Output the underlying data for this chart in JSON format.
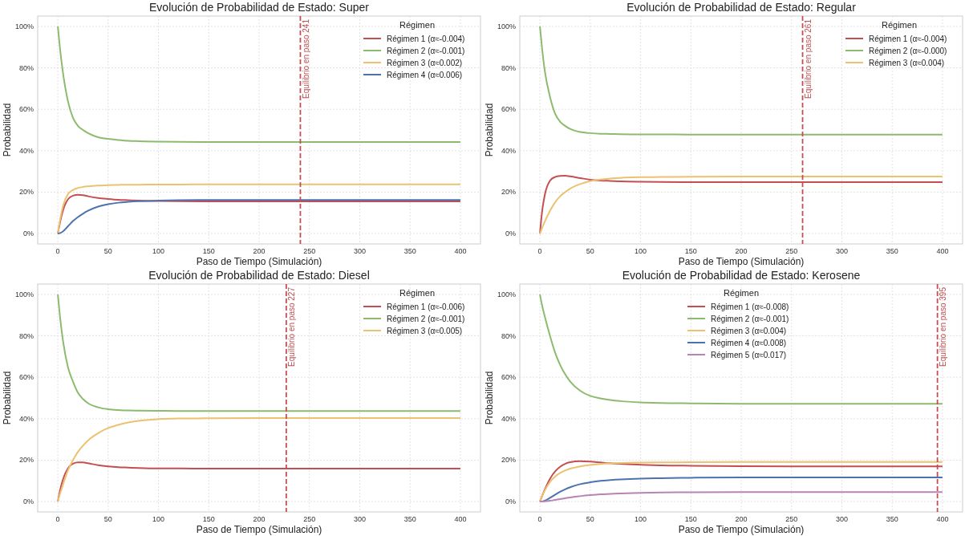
{
  "chart_data": [
    {
      "type": "line",
      "title": "Evolución de Probabilidad de Estado: Super",
      "xlabel": "Paso de Tiempo (Simulación)",
      "ylabel": "Probabilidad",
      "legend_title": "Régimen",
      "legend": "top right",
      "grid": true,
      "x": [
        0,
        2,
        5,
        10,
        15,
        20,
        25,
        30,
        40,
        50,
        60,
        70,
        80,
        100,
        120,
        150,
        200,
        250,
        300,
        350,
        400
      ],
      "series": [
        {
          "name": "Régimen 1 (α≈-0.004)",
          "color": "#c44e52",
          "values": [
            0,
            5,
            11,
            16.5,
            18.3,
            18.7,
            18.5,
            18,
            17.2,
            16.7,
            16.3,
            16.1,
            15.9,
            15.7,
            15.6,
            15.5,
            15.5,
            15.5,
            15.5,
            15.5,
            15.5
          ]
        },
        {
          "name": "Régimen 2 (α≈-0.001)",
          "color": "#8cbb6e",
          "values": [
            100,
            90,
            78,
            64,
            56,
            52,
            50,
            48.5,
            46.5,
            45.7,
            45.2,
            44.8,
            44.6,
            44.4,
            44.3,
            44.2,
            44.2,
            44.2,
            44.2,
            44.2,
            44.2
          ]
        },
        {
          "name": "Régimen 3 (α≈0.002)",
          "color": "#ecc272",
          "values": [
            0,
            6,
            13,
            19,
            21,
            22,
            22.5,
            22.8,
            23.2,
            23.4,
            23.5,
            23.6,
            23.6,
            23.7,
            23.7,
            23.8,
            23.8,
            23.8,
            23.8,
            23.8,
            23.8
          ]
        },
        {
          "name": "Régimen 4 (α≈0.006)",
          "color": "#4c72b0",
          "values": [
            0,
            0.2,
            1,
            3.5,
            6,
            8,
            9.6,
            11,
            13,
            14.2,
            14.9,
            15.3,
            15.6,
            15.9,
            16.1,
            16.2,
            16.2,
            16.2,
            16.2,
            16.2,
            16.2
          ]
        }
      ],
      "xlim": [
        -20,
        420
      ],
      "ylim": [
        -5,
        105
      ],
      "xticks": [
        0,
        50,
        100,
        150,
        200,
        250,
        300,
        350,
        400
      ],
      "yticks": [
        {
          "value": 0,
          "label": "0%"
        },
        {
          "value": 20,
          "label": "20%"
        },
        {
          "value": 40,
          "label": "40%"
        },
        {
          "value": 60,
          "label": "60%"
        },
        {
          "value": 80,
          "label": "80%"
        },
        {
          "value": 100,
          "label": "100%"
        }
      ],
      "ref_lines": [
        {
          "axis": "x",
          "value": 241,
          "label": "Equilibrio en paso 241",
          "color": "#c44e52",
          "line_style": "dashed"
        }
      ]
    },
    {
      "type": "line",
      "title": "Evolución de Probabilidad de Estado: Regular",
      "xlabel": "Paso de Tiempo (Simulación)",
      "ylabel": "Probabilidad",
      "legend_title": "Régimen",
      "legend": "top right",
      "grid": true,
      "x": [
        0,
        2,
        5,
        10,
        15,
        20,
        25,
        30,
        40,
        50,
        60,
        70,
        80,
        100,
        120,
        150,
        200,
        250,
        300,
        350,
        400
      ],
      "series": [
        {
          "name": "Régimen 1 (α≈-0.004)",
          "color": "#c44e52",
          "values": [
            0,
            10,
            19,
            25.5,
            27.3,
            27.8,
            27.9,
            27.6,
            26.8,
            26,
            25.6,
            25.4,
            25.2,
            25,
            24.9,
            24.8,
            24.8,
            24.8,
            24.8,
            24.8,
            24.8
          ]
        },
        {
          "name": "Régimen 2 (α≈-0.000)",
          "color": "#8cbb6e",
          "values": [
            100,
            90,
            78,
            66,
            58,
            54,
            52,
            50.5,
            49,
            48.5,
            48.2,
            48.1,
            48,
            47.9,
            47.9,
            47.8,
            47.8,
            47.8,
            47.8,
            47.8,
            47.8
          ]
        },
        {
          "name": "Régimen 3 (α≈0.004)",
          "color": "#ecc272",
          "values": [
            0,
            2.5,
            6,
            11,
            15,
            18,
            20,
            21.7,
            23.9,
            25.3,
            26.1,
            26.6,
            26.9,
            27.2,
            27.3,
            27.4,
            27.5,
            27.5,
            27.5,
            27.5,
            27.5
          ]
        }
      ],
      "xlim": [
        -20,
        420
      ],
      "ylim": [
        -5,
        105
      ],
      "xticks": [
        0,
        50,
        100,
        150,
        200,
        250,
        300,
        350,
        400
      ],
      "yticks": [
        {
          "value": 0,
          "label": "0%"
        },
        {
          "value": 20,
          "label": "20%"
        },
        {
          "value": 40,
          "label": "40%"
        },
        {
          "value": 60,
          "label": "60%"
        },
        {
          "value": 80,
          "label": "80%"
        },
        {
          "value": 100,
          "label": "100%"
        }
      ],
      "ref_lines": [
        {
          "axis": "x",
          "value": 261,
          "label": "Equilibrio en paso 261",
          "color": "#c44e52",
          "line_style": "dashed"
        }
      ]
    },
    {
      "type": "line",
      "title": "Evolución de Probabilidad de Estado: Diesel",
      "xlabel": "Paso de Tiempo (Simulación)",
      "ylabel": "Probabilidad",
      "legend_title": "Régimen",
      "legend": "top right",
      "grid": true,
      "x": [
        0,
        2,
        5,
        10,
        15,
        20,
        25,
        30,
        40,
        50,
        60,
        70,
        80,
        100,
        120,
        150,
        200,
        250,
        300,
        350,
        400
      ],
      "series": [
        {
          "name": "Régimen 1 (α≈-0.006)",
          "color": "#c44e52",
          "values": [
            0,
            5,
            10.5,
            16,
            18.3,
            18.9,
            18.9,
            18.5,
            17.6,
            17,
            16.6,
            16.4,
            16.2,
            16,
            16,
            15.9,
            15.9,
            15.9,
            15.9,
            15.9,
            15.9
          ]
        },
        {
          "name": "Régimen 2 (α≈-0.001)",
          "color": "#8cbb6e",
          "values": [
            100,
            90,
            78,
            65,
            58,
            52.5,
            49.5,
            47.5,
            45.5,
            44.6,
            44.2,
            44,
            43.9,
            43.8,
            43.7,
            43.7,
            43.7,
            43.7,
            43.7,
            43.7,
            43.7
          ]
        },
        {
          "name": "Régimen 3 (α≈0.005)",
          "color": "#ecc272",
          "values": [
            0,
            3.5,
            8,
            15,
            20,
            24,
            27,
            29.5,
            33,
            35.5,
            37,
            38.2,
            39,
            39.8,
            40.1,
            40.2,
            40.3,
            40.3,
            40.3,
            40.3,
            40.3
          ]
        }
      ],
      "xlim": [
        -20,
        420
      ],
      "ylim": [
        -5,
        105
      ],
      "xticks": [
        0,
        50,
        100,
        150,
        200,
        250,
        300,
        350,
        400
      ],
      "yticks": [
        {
          "value": 0,
          "label": "0%"
        },
        {
          "value": 20,
          "label": "20%"
        },
        {
          "value": 40,
          "label": "40%"
        },
        {
          "value": 60,
          "label": "60%"
        },
        {
          "value": 80,
          "label": "80%"
        },
        {
          "value": 100,
          "label": "100%"
        }
      ],
      "ref_lines": [
        {
          "axis": "x",
          "value": 227,
          "label": "Equilibrio en paso 227",
          "color": "#c44e52",
          "line_style": "dashed"
        }
      ]
    },
    {
      "type": "line",
      "title": "Evolución de Probabilidad de Estado: Kerosene",
      "xlabel": "Paso de Tiempo (Simulación)",
      "ylabel": "Probabilidad",
      "legend_title": "Régimen",
      "legend": "top",
      "grid": true,
      "x": [
        0,
        2,
        5,
        10,
        15,
        20,
        25,
        30,
        40,
        50,
        60,
        70,
        80,
        100,
        120,
        150,
        200,
        250,
        300,
        350,
        400
      ],
      "series": [
        {
          "name": "Régimen 1 (α≈-0.008)",
          "color": "#c44e52",
          "values": [
            0,
            2.5,
            6,
            11,
            14.5,
            16.8,
            18.2,
            19,
            19.5,
            19.3,
            18.9,
            18.5,
            18.2,
            17.8,
            17.5,
            17.3,
            17.1,
            17,
            17,
            17,
            17
          ]
        },
        {
          "name": "Régimen 2 (α≈-0.001)",
          "color": "#8cbb6e",
          "values": [
            100,
            95,
            89,
            80,
            72,
            66,
            61.5,
            58,
            53.5,
            51,
            49.8,
            49,
            48.5,
            47.9,
            47.6,
            47.4,
            47.2,
            47.2,
            47.2,
            47.2,
            47.2
          ]
        },
        {
          "name": "Régimen 3 (α≈0.004)",
          "color": "#ecc272",
          "values": [
            0,
            2.5,
            5.5,
            9.5,
            12,
            13.8,
            15,
            15.9,
            17,
            17.7,
            18.1,
            18.4,
            18.6,
            18.8,
            18.9,
            19,
            19.1,
            19.1,
            19.1,
            19.1,
            19.1
          ]
        },
        {
          "name": "Régimen 4 (α≈0.008)",
          "color": "#4c72b0",
          "values": [
            0,
            0,
            0.5,
            1.8,
            3.3,
            4.7,
            5.9,
            6.9,
            8.4,
            9.3,
            10,
            10.4,
            10.7,
            11.1,
            11.3,
            11.5,
            11.7,
            11.7,
            11.7,
            11.7,
            11.7
          ]
        },
        {
          "name": "Régimen 5 (α≈0.017)",
          "color": "#b784b5",
          "values": [
            0,
            0,
            0.1,
            0.4,
            0.8,
            1.2,
            1.6,
            2,
            2.6,
            3.1,
            3.5,
            3.7,
            3.9,
            4.2,
            4.4,
            4.5,
            4.6,
            4.6,
            4.6,
            4.6,
            4.6
          ]
        }
      ],
      "xlim": [
        -20,
        420
      ],
      "ylim": [
        -5,
        105
      ],
      "xticks": [
        0,
        50,
        100,
        150,
        200,
        250,
        300,
        350,
        400
      ],
      "yticks": [
        {
          "value": 0,
          "label": "0%"
        },
        {
          "value": 20,
          "label": "20%"
        },
        {
          "value": 40,
          "label": "40%"
        },
        {
          "value": 60,
          "label": "60%"
        },
        {
          "value": 80,
          "label": "80%"
        },
        {
          "value": 100,
          "label": "100%"
        }
      ],
      "ref_lines": [
        {
          "axis": "x",
          "value": 395,
          "label": "Equilibrio en paso 395",
          "color": "#c44e52",
          "line_style": "dashed"
        }
      ]
    }
  ]
}
